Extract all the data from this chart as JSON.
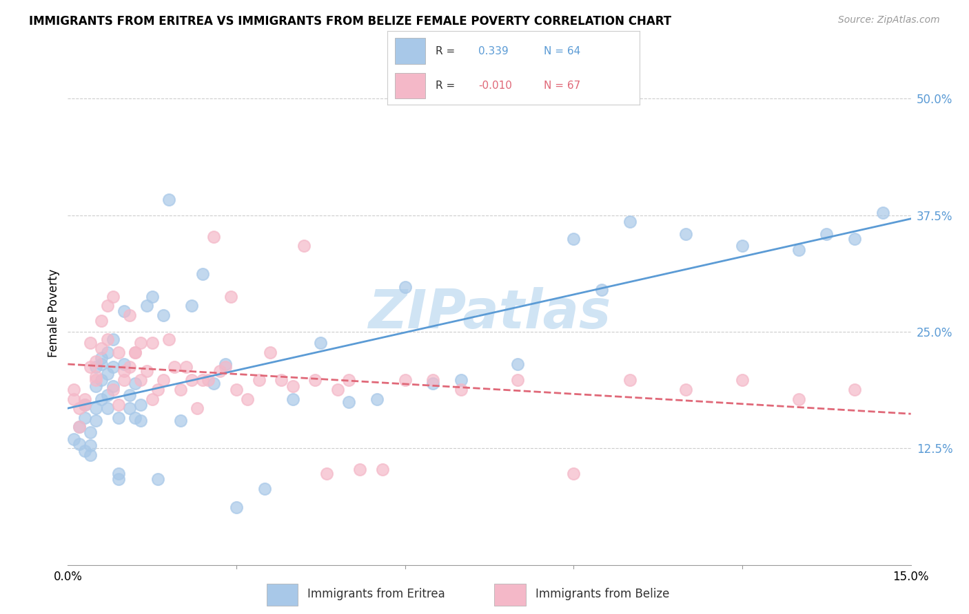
{
  "title": "IMMIGRANTS FROM ERITREA VS IMMIGRANTS FROM BELIZE FEMALE POVERTY CORRELATION CHART",
  "source": "Source: ZipAtlas.com",
  "ylabel": "Female Poverty",
  "ytick_labels": [
    "12.5%",
    "25.0%",
    "37.5%",
    "50.0%"
  ],
  "ytick_values": [
    0.125,
    0.25,
    0.375,
    0.5
  ],
  "xlim": [
    0.0,
    0.15
  ],
  "ylim": [
    0.0,
    0.54
  ],
  "legend_eritrea_R": "0.339",
  "legend_eritrea_N": "64",
  "legend_belize_R": "-0.010",
  "legend_belize_N": "67",
  "color_eritrea": "#a8c8e8",
  "color_belize": "#f4b8c8",
  "color_eritrea_line": "#5b9bd5",
  "color_belize_line": "#e06878",
  "watermark": "ZIPatlas",
  "watermark_color": "#d0e4f4",
  "eritrea_scatter_x": [
    0.001,
    0.002,
    0.002,
    0.003,
    0.003,
    0.003,
    0.004,
    0.004,
    0.004,
    0.005,
    0.005,
    0.005,
    0.005,
    0.006,
    0.006,
    0.006,
    0.006,
    0.007,
    0.007,
    0.007,
    0.007,
    0.008,
    0.008,
    0.008,
    0.009,
    0.009,
    0.009,
    0.01,
    0.01,
    0.011,
    0.011,
    0.012,
    0.012,
    0.013,
    0.013,
    0.014,
    0.015,
    0.016,
    0.017,
    0.018,
    0.02,
    0.022,
    0.024,
    0.026,
    0.028,
    0.03,
    0.035,
    0.04,
    0.045,
    0.05,
    0.055,
    0.06,
    0.065,
    0.07,
    0.08,
    0.09,
    0.095,
    0.1,
    0.11,
    0.12,
    0.13,
    0.135,
    0.14,
    0.145
  ],
  "eritrea_scatter_y": [
    0.135,
    0.13,
    0.148,
    0.122,
    0.158,
    0.172,
    0.118,
    0.142,
    0.128,
    0.155,
    0.192,
    0.212,
    0.168,
    0.178,
    0.222,
    0.198,
    0.215,
    0.168,
    0.182,
    0.228,
    0.205,
    0.242,
    0.192,
    0.212,
    0.098,
    0.158,
    0.092,
    0.272,
    0.215,
    0.168,
    0.182,
    0.158,
    0.195,
    0.155,
    0.172,
    0.278,
    0.288,
    0.092,
    0.268,
    0.392,
    0.155,
    0.278,
    0.312,
    0.195,
    0.215,
    0.062,
    0.082,
    0.178,
    0.238,
    0.175,
    0.178,
    0.298,
    0.195,
    0.198,
    0.215,
    0.35,
    0.295,
    0.368,
    0.355,
    0.342,
    0.338,
    0.355,
    0.35,
    0.378
  ],
  "belize_scatter_x": [
    0.001,
    0.001,
    0.002,
    0.002,
    0.003,
    0.003,
    0.004,
    0.004,
    0.005,
    0.005,
    0.005,
    0.006,
    0.006,
    0.007,
    0.007,
    0.008,
    0.008,
    0.009,
    0.009,
    0.01,
    0.01,
    0.011,
    0.011,
    0.012,
    0.012,
    0.013,
    0.013,
    0.014,
    0.015,
    0.015,
    0.016,
    0.017,
    0.018,
    0.019,
    0.02,
    0.021,
    0.022,
    0.023,
    0.024,
    0.025,
    0.026,
    0.027,
    0.028,
    0.029,
    0.03,
    0.032,
    0.034,
    0.036,
    0.038,
    0.04,
    0.042,
    0.044,
    0.046,
    0.048,
    0.05,
    0.052,
    0.056,
    0.06,
    0.065,
    0.07,
    0.08,
    0.09,
    0.1,
    0.11,
    0.12,
    0.13,
    0.14
  ],
  "belize_scatter_y": [
    0.188,
    0.178,
    0.148,
    0.168,
    0.172,
    0.178,
    0.238,
    0.212,
    0.218,
    0.202,
    0.198,
    0.232,
    0.262,
    0.278,
    0.242,
    0.188,
    0.288,
    0.172,
    0.228,
    0.198,
    0.208,
    0.268,
    0.212,
    0.228,
    0.228,
    0.238,
    0.198,
    0.208,
    0.178,
    0.238,
    0.188,
    0.198,
    0.242,
    0.212,
    0.188,
    0.212,
    0.198,
    0.168,
    0.198,
    0.198,
    0.352,
    0.208,
    0.212,
    0.288,
    0.188,
    0.178,
    0.198,
    0.228,
    0.198,
    0.192,
    0.342,
    0.198,
    0.098,
    0.188,
    0.198,
    0.102,
    0.102,
    0.198,
    0.198,
    0.188,
    0.198,
    0.098,
    0.198,
    0.188,
    0.198,
    0.178,
    0.188
  ]
}
